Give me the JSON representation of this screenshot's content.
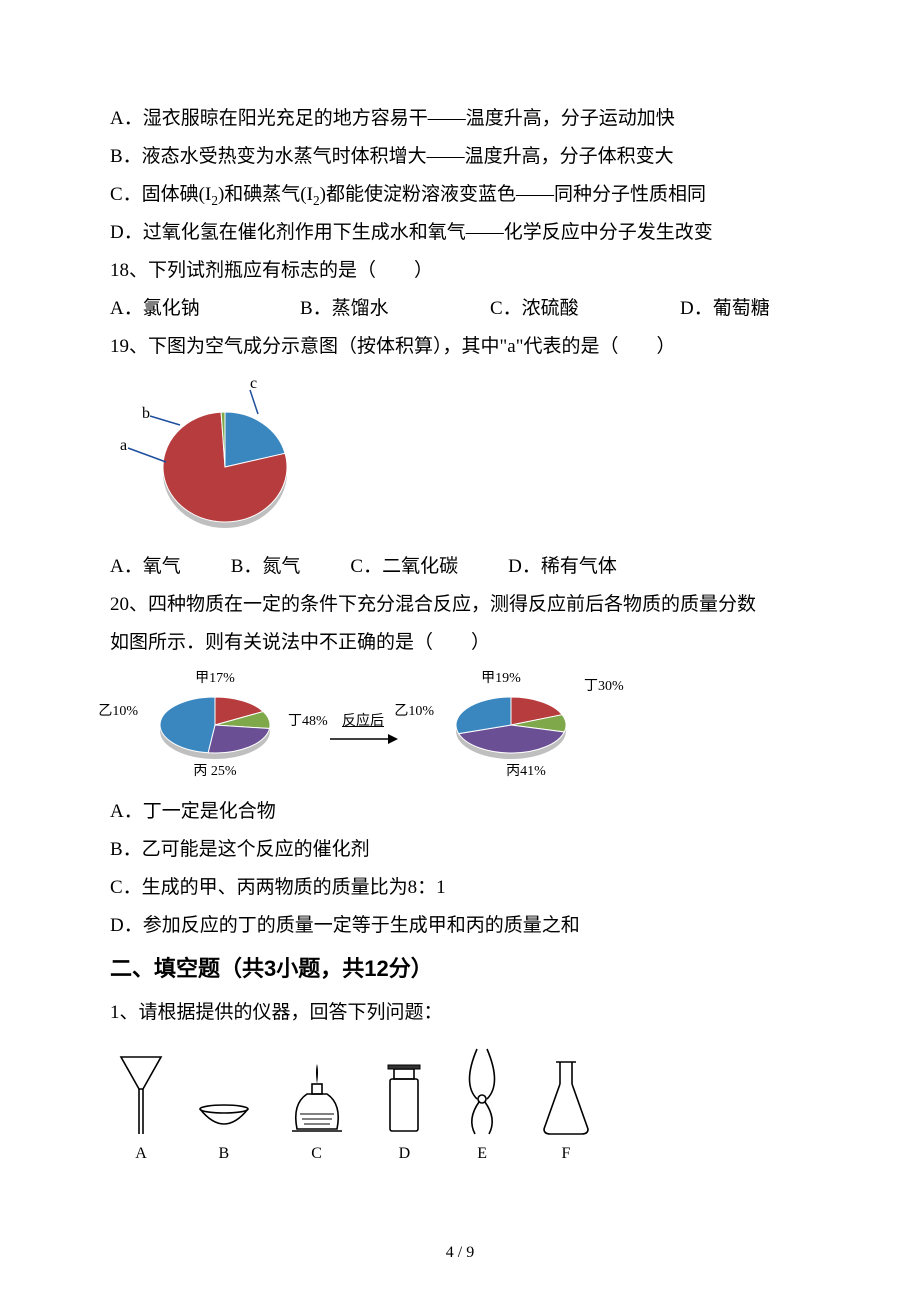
{
  "q_lines": {
    "optA": "A．湿衣服晾在阳光充足的地方容易干——温度升高，分子运动加快",
    "optB": "B．液态水受热变为水蒸气时体积增大——温度升高，分子体积变大",
    "optC_pre": "C．固体碘(I",
    "optC_sub1": "2",
    "optC_mid": ")和碘蒸气(I",
    "optC_sub2": "2",
    "optC_post": ")都能使淀粉溶液变蓝色——同种分子性质相同",
    "optD": "D．过氧化氢在催化剂作用下生成水和氧气——化学反应中分子发生改变"
  },
  "q18": {
    "stem": "18、下列试剂瓶应有标志的是（　　）",
    "A": "A．氯化钠",
    "B": "B．蒸馏水",
    "C": "C．浓硫酸",
    "D": "D．葡萄糖"
  },
  "q19": {
    "stem": "19、下图为空气成分示意图（按体积算），其中\"a\"代表的是（　　）",
    "pie": {
      "type": "pie",
      "slices": [
        {
          "label": "c",
          "value": 21,
          "color": "#3a87c0"
        },
        {
          "label": "a",
          "value": 78,
          "color": "#b63c3e"
        },
        {
          "label": "b",
          "value": 1,
          "color": "#7fa84a"
        }
      ],
      "background_color": "#ffffff",
      "leader_color": "#1f4e9e",
      "label_fontsize": 16
    },
    "A": "A．氧气",
    "B": "B．氮气",
    "C": "C．二氧化碳",
    "D": "D．稀有气体"
  },
  "q20": {
    "stem1": "20、四种物质在一定的条件下充分混合反应，测得反应前后各物质的质量分数",
    "stem2": "如图所示．则有关说法中不正确的是（　　）",
    "arrow_label": "反应后",
    "before": {
      "type": "pie",
      "slices": [
        {
          "label": "甲17%",
          "value": 17,
          "color": "#b63c3e"
        },
        {
          "label": "乙10%",
          "value": 10,
          "color": "#7fa84a"
        },
        {
          "label": "丙 25%",
          "value": 25,
          "color": "#6a4f95"
        },
        {
          "label": "丁48%",
          "value": 48,
          "color": "#3a87c0"
        }
      ],
      "label_fontsize": 14
    },
    "after": {
      "type": "pie",
      "slices": [
        {
          "label": "甲19%",
          "value": 19,
          "color": "#b63c3e"
        },
        {
          "label": "乙10%",
          "value": 10,
          "color": "#7fa84a"
        },
        {
          "label": "丙41%",
          "value": 41,
          "color": "#6a4f95"
        },
        {
          "label": "丁30%",
          "value": 30,
          "color": "#3a87c0"
        }
      ],
      "label_fontsize": 14
    },
    "A": "A．丁一定是化合物",
    "B": "B．乙可能是这个反应的催化剂",
    "C": "C．生成的甲、丙两物质的质量比为8：1",
    "D": "D．参加反应的丁的质量一定等于生成甲和丙的质量之和"
  },
  "section2": {
    "title": "二、填空题（共3小题，共12分）",
    "q1": "1、请根据提供的仪器，回答下列问题："
  },
  "instruments": {
    "A": "A",
    "B": "B",
    "C": "C",
    "D": "D",
    "E": "E",
    "F": "F",
    "stroke": "#000000"
  },
  "footer": {
    "page": "4",
    "total": "9",
    "sep": " / "
  },
  "colors": {
    "text": "#000000",
    "bg": "#ffffff",
    "leader": "#1f4e9e"
  }
}
